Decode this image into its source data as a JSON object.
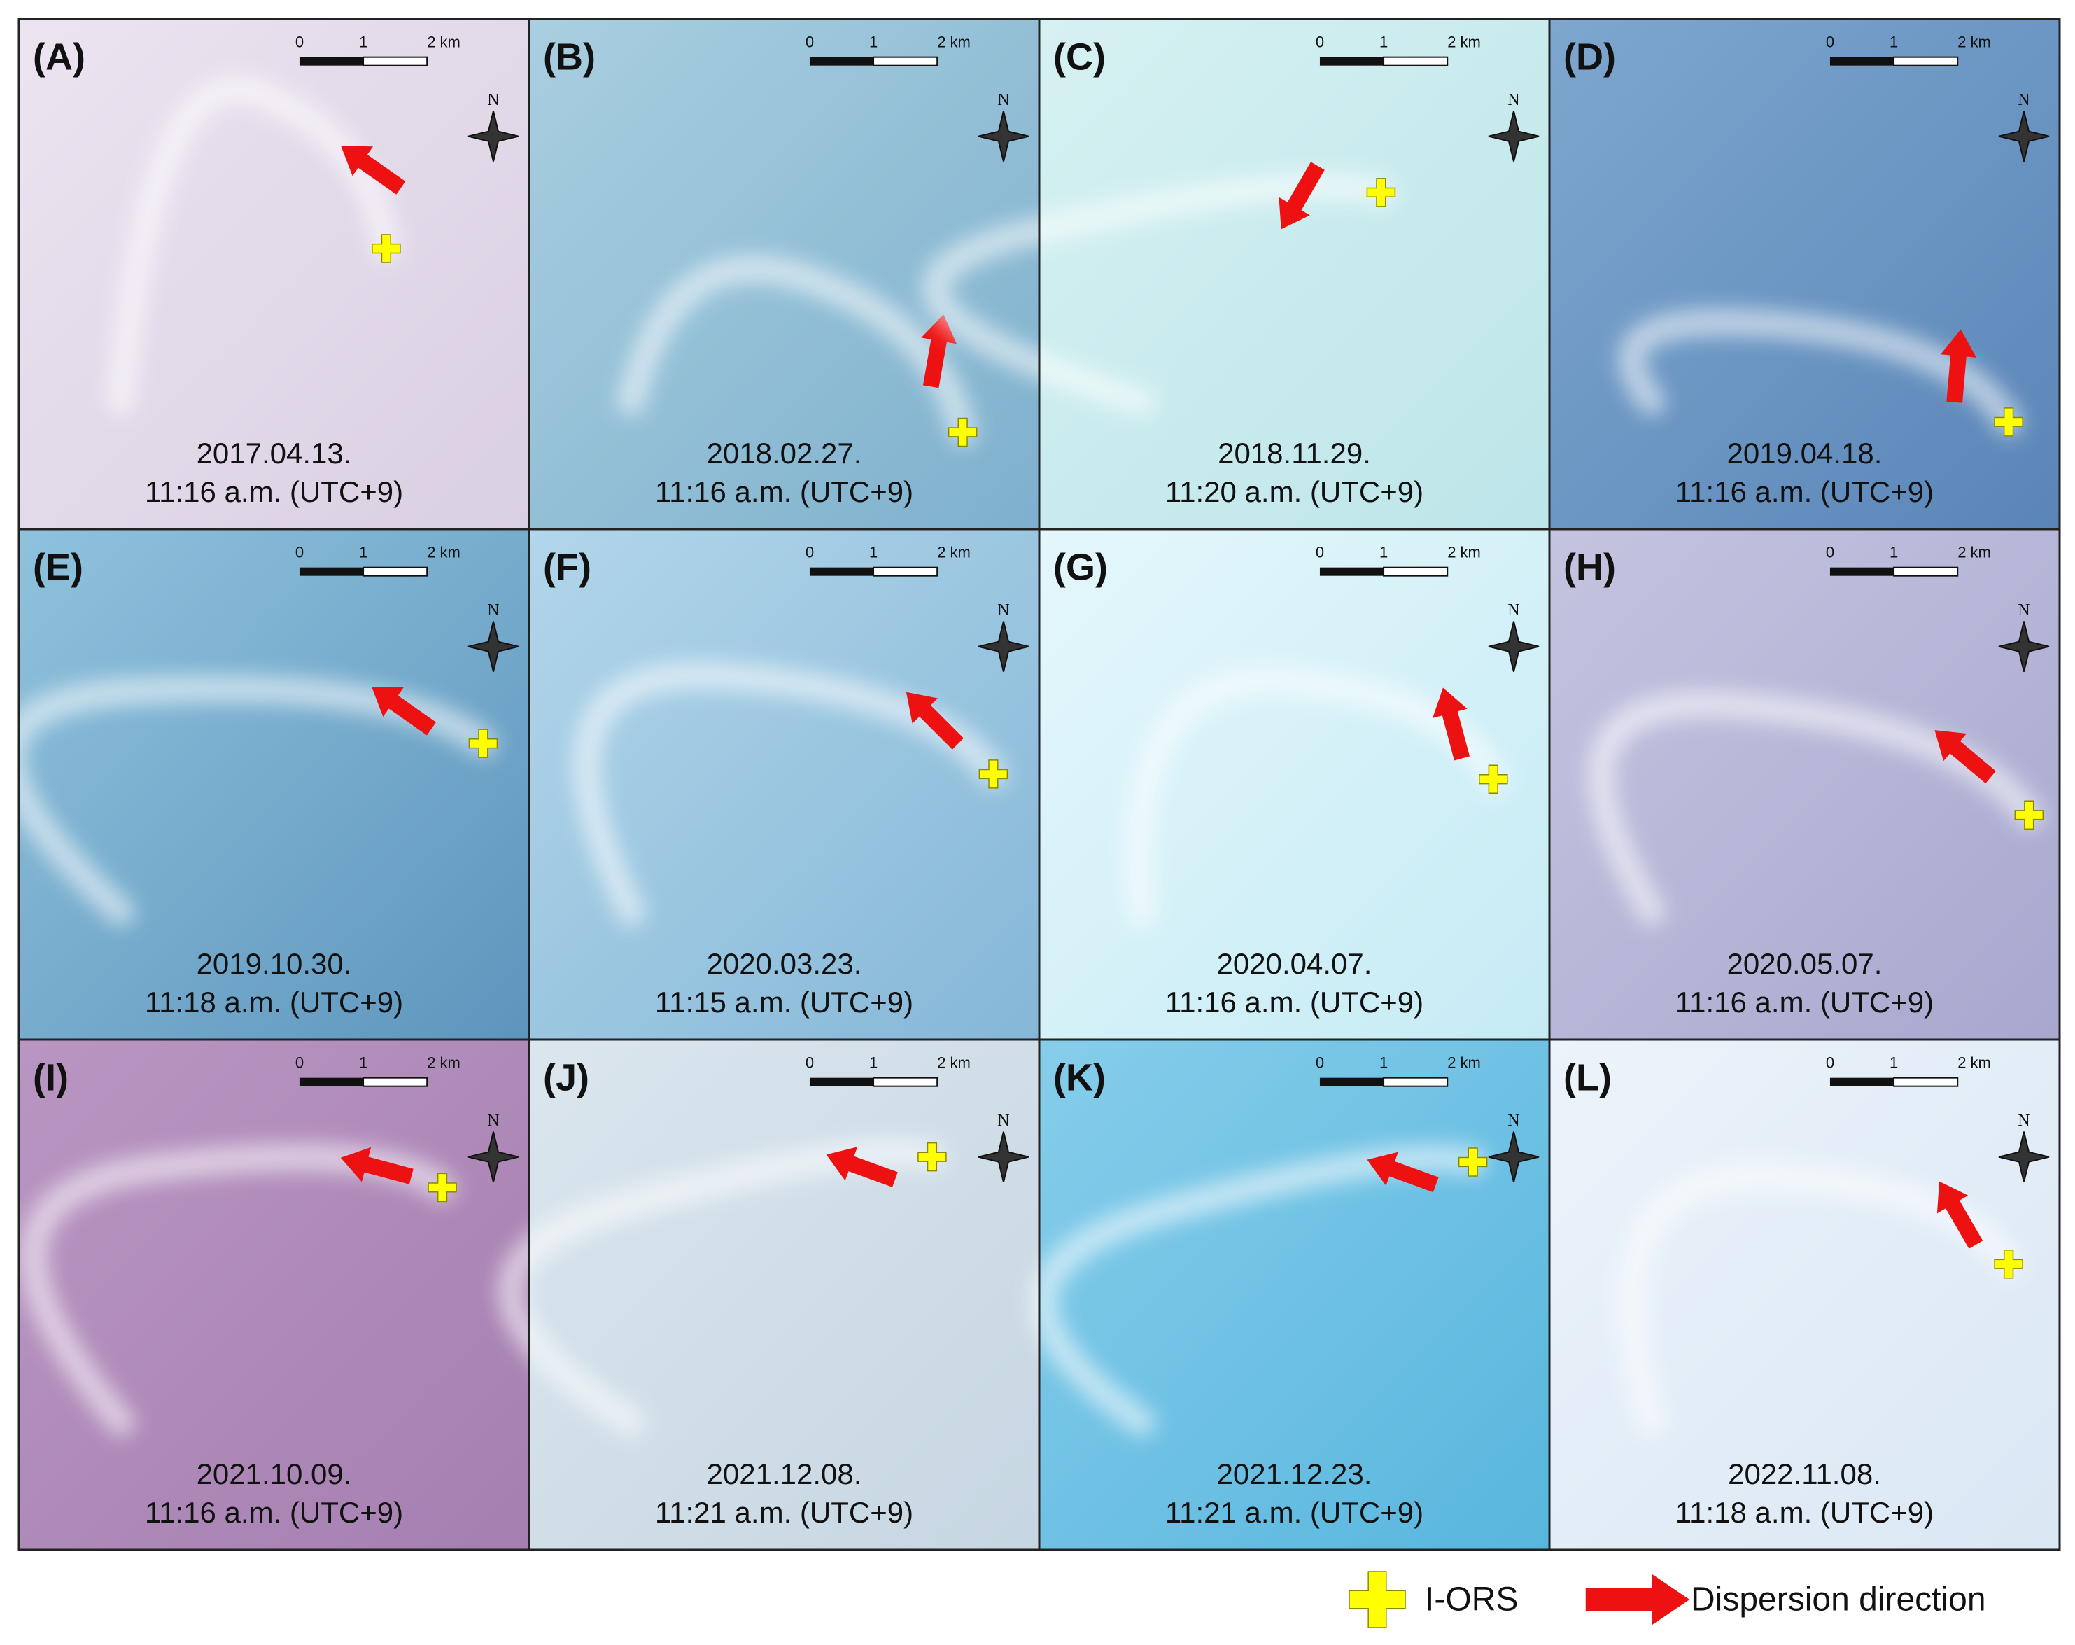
{
  "panels": [
    {
      "label": "(A)",
      "date": "2017.04.13.",
      "time": "11:16 a.m. (UTC+9)"
    },
    {
      "label": "(B)",
      "date": "2018.02.27.",
      "time": "11:16 a.m. (UTC+9)"
    },
    {
      "label": "(C)",
      "date": "2018.11.29.",
      "time": "11:20 a.m. (UTC+9)"
    },
    {
      "label": "(D)",
      "date": "2019.04.18.",
      "time": "11:16 a.m. (UTC+9)"
    },
    {
      "label": "(E)",
      "date": "2019.10.30.",
      "time": "11:18 a.m. (UTC+9)"
    },
    {
      "label": "(F)",
      "date": "2020.03.23.",
      "time": "11:15 a.m. (UTC+9)"
    },
    {
      "label": "(G)",
      "date": "2020.04.07.",
      "time": "11:16 a.m. (UTC+9)"
    },
    {
      "label": "(H)",
      "date": "2020.05.07.",
      "time": "11:16 a.m. (UTC+9)"
    },
    {
      "label": "(I)",
      "date": "2021.10.09.",
      "time": "11:16 a.m. (UTC+9)"
    },
    {
      "label": "(J)",
      "date": "2021.12.08.",
      "time": "11:21 a.m. (UTC+9)"
    },
    {
      "label": "(K)",
      "date": "2021.12.23.",
      "time": "11:21 a.m. (UTC+9)"
    },
    {
      "label": "(L)",
      "date": "2022.11.08.",
      "time": "11:18 a.m. (UTC+9)"
    }
  ],
  "scale_bar": {
    "ticks": [
      "0",
      "1",
      "2 km"
    ]
  },
  "compass": "N",
  "legend": [
    {
      "label": "I-ORS"
    },
    {
      "label": "Dispersion direction"
    }
  ]
}
